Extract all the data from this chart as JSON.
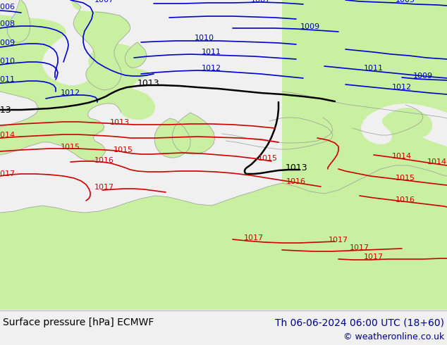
{
  "title_left": "Surface pressure [hPa] ECMWF",
  "title_right": "Th 06-06-2024 06:00 UTC (18+60)",
  "copyright": "© weatheronline.co.uk",
  "land_color": "#c8f0a0",
  "sea_color": "#d8d8d8",
  "footer_color": "#f0f0f0",
  "blue": "#0000cc",
  "red": "#cc0000",
  "black": "#000000",
  "gray": "#999999",
  "footer_left_color": "#000000",
  "footer_right_color": "#00008b"
}
